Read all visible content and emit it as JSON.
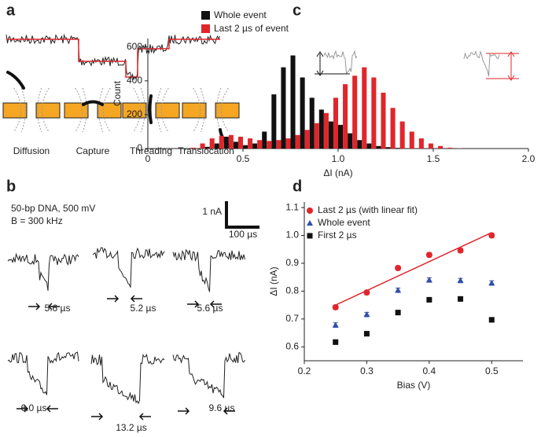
{
  "panel_labels": [
    "a",
    "b",
    "c",
    "d"
  ],
  "panel_a": {
    "stages": [
      "Diffusion",
      "Capture",
      "Threading",
      "Translocation"
    ]
  },
  "panel_b": {
    "condition": "50-bp DNA, 500 mV",
    "bandwidth": "B = 300 kHz",
    "scale_current": "1 nA",
    "scale_time": "100 µs",
    "durations": [
      "5.6 µs",
      "5.2 µs",
      "5.6 µs",
      "6.0 µs",
      "13.2 µs",
      "9.6 µs"
    ]
  },
  "chart_data": [
    {
      "type": "histogram",
      "xlabel": "ΔI (nA)",
      "ylabel": "Count",
      "bins": [
        0.2,
        0.25,
        0.3,
        0.35,
        0.4,
        0.45,
        0.5,
        0.55,
        0.6,
        0.65,
        0.7,
        0.75,
        0.8,
        0.85,
        0.9,
        0.95,
        1.0,
        1.05,
        1.1,
        1.15,
        1.2,
        1.25,
        1.3,
        1.35,
        1.4,
        1.45,
        1.5,
        1.55,
        1.6,
        1.65
      ],
      "series": [
        {
          "name": "Whole event",
          "color": "#111111",
          "values": [
            0,
            2,
            10,
            30,
            70,
            40,
            20,
            30,
            100,
            320,
            480,
            550,
            420,
            300,
            230,
            160,
            140,
            90,
            50,
            30,
            15,
            8,
            4,
            2,
            1,
            0,
            0,
            0,
            0
          ]
        },
        {
          "name": "Last 2 µs of event",
          "color": "#e0262b",
          "values": [
            5,
            30,
            60,
            75,
            80,
            70,
            60,
            50,
            45,
            50,
            60,
            80,
            110,
            150,
            210,
            300,
            380,
            430,
            480,
            420,
            330,
            240,
            160,
            100,
            60,
            30,
            15,
            5,
            2
          ]
        }
      ],
      "xlim": [
        0,
        2
      ],
      "xticks": [
        0,
        0.5,
        {
          "value": 1,
          "label": "1.0"
        },
        1.5,
        {
          "value": 2,
          "label": "2.0"
        }
      ],
      "ylim": [
        0,
        650
      ],
      "yticks": [
        0,
        200,
        400,
        600
      ]
    },
    {
      "type": "scatter",
      "xlabel": "Bias (V)",
      "ylabel": "ΔI (nA)",
      "x": [
        0.25,
        0.3,
        0.35,
        0.4,
        0.45,
        0.5
      ],
      "series": [
        {
          "name": "Last 2 µs (with linear fit)",
          "color": "#e0262b",
          "marker": "circle",
          "values": [
            0.742,
            0.795,
            0.883,
            0.93,
            0.946,
            1.0
          ],
          "errors": [
            0.008,
            0.008,
            0.008,
            0.008,
            0.008,
            0.008
          ]
        },
        {
          "name": "Whole event",
          "color": "#2f4fa8",
          "marker": "triangle",
          "values": [
            0.678,
            0.716,
            0.803,
            0.84,
            0.838,
            0.829
          ],
          "errors": [
            0.008,
            0.008,
            0.008,
            0.008,
            0.008,
            0.008
          ]
        },
        {
          "name": "First 2 µs",
          "color": "#111111",
          "marker": "square",
          "values": [
            0.617,
            0.647,
            0.723,
            0.769,
            0.772,
            0.697
          ],
          "errors": [
            0.008,
            0.008,
            0.008,
            0.008,
            0.008,
            0.008
          ]
        }
      ],
      "fit": {
        "color": "#e0262b",
        "x": [
          0.25,
          0.5
        ],
        "values": [
          0.75,
          1.01
        ]
      },
      "xlim": [
        0.2,
        0.55
      ],
      "xticks": [
        0.2,
        0.3,
        0.4,
        0.5
      ],
      "ylim": [
        0.55,
        1.12
      ],
      "yticks": [
        0.6,
        0.7,
        0.8,
        0.9,
        {
          "value": 1,
          "label": "1.0"
        },
        1.1
      ]
    }
  ]
}
